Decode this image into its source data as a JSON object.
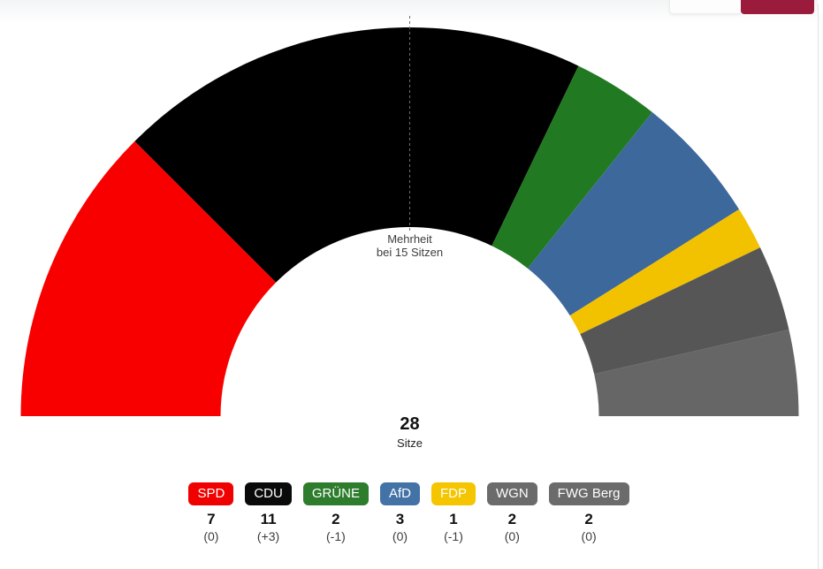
{
  "page": {
    "background_color": "#ffffff",
    "right_border_color": "#e4e4e4"
  },
  "header": {
    "light_button_label": "",
    "accent_button_label": "",
    "accent_button_color": "#9b1b3c"
  },
  "chart_data": {
    "type": "pie",
    "variant": "semicircle-donut",
    "start_angle_deg": 180,
    "end_angle_deg": 0,
    "inner_radius_ratio": 0.486,
    "legend_position": "bottom",
    "total": {
      "value": "28",
      "label": "Sitze",
      "seats": 28
    },
    "majority_marker": {
      "line1": "Mehrheit",
      "line2": "bei 15 Sitzen",
      "seats": 15,
      "line_color": "#6e6e6e"
    },
    "series": [
      {
        "name": "SPD",
        "seats": 7,
        "change": "(0)",
        "wedge_color": "#f90000",
        "badge_color": "#f10000",
        "badge_text_color": "#ffffff"
      },
      {
        "name": "CDU",
        "seats": 11,
        "change": "(+3)",
        "wedge_color": "#000000",
        "badge_color": "#0a0a0a",
        "badge_text_color": "#ffffff"
      },
      {
        "name": "GRÜNE",
        "seats": 2,
        "change": "(-1)",
        "wedge_color": "#217a21",
        "badge_color": "#2d7d2d",
        "badge_text_color": "#ffffff"
      },
      {
        "name": "AfD",
        "seats": 3,
        "change": "(0)",
        "wedge_color": "#3d689c",
        "badge_color": "#4372a6",
        "badge_text_color": "#ffffff"
      },
      {
        "name": "FDP",
        "seats": 1,
        "change": "(-1)",
        "wedge_color": "#f2c100",
        "badge_color": "#f5c500",
        "badge_text_color": "#ffffff"
      },
      {
        "name": "WGN",
        "seats": 2,
        "change": "(0)",
        "wedge_color": "#565656",
        "badge_color": "#6b6b6b",
        "badge_text_color": "#ffffff"
      },
      {
        "name": "FWG Berg",
        "seats": 2,
        "change": "(0)",
        "wedge_color": "#666666",
        "badge_color": "#6b6b6b",
        "badge_text_color": "#ffffff"
      }
    ]
  }
}
